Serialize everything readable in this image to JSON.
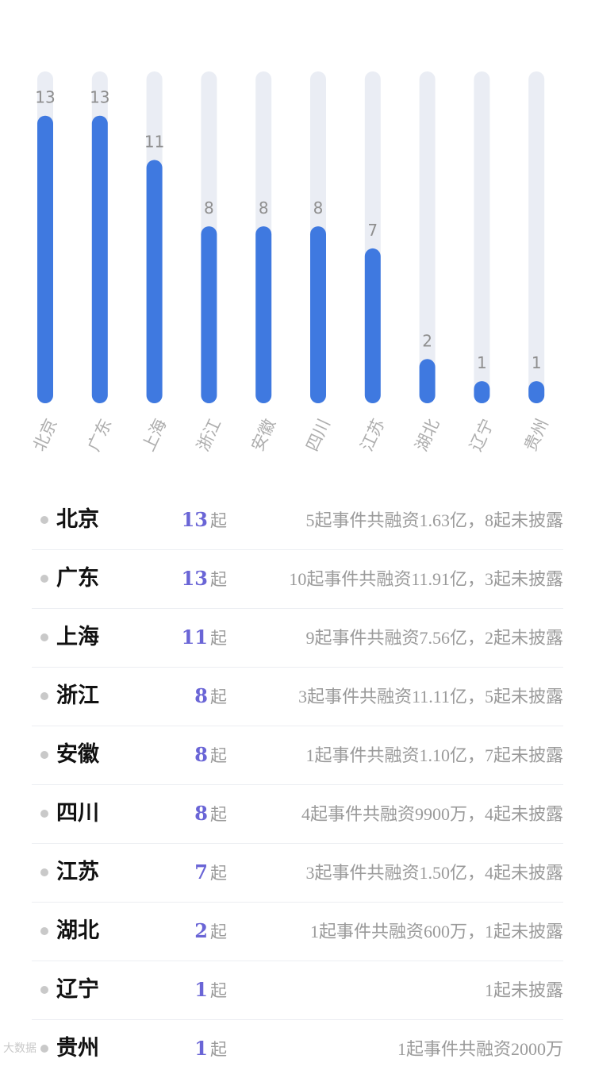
{
  "chart_data": {
    "type": "bar",
    "categories": [
      "北京",
      "广东",
      "上海",
      "浙江",
      "安徽",
      "四川",
      "江苏",
      "湖北",
      "辽宁",
      "贵州"
    ],
    "values": [
      13,
      13,
      11,
      8,
      8,
      8,
      7,
      2,
      1,
      1
    ],
    "ylim": [
      0,
      15
    ],
    "grid": false,
    "bar_color": "#3f79e0",
    "track_color": "#eaedf4",
    "label_color": "#8f8f8f",
    "axis_label_color": "#aeaeae"
  },
  "list": {
    "count_unit": "起",
    "rows": [
      {
        "name": "北京",
        "count": "13",
        "summary": "5起事件共融资1.63亿，8起未披露"
      },
      {
        "name": "广东",
        "count": "13",
        "summary": "10起事件共融资11.91亿，3起未披露"
      },
      {
        "name": "上海",
        "count": "11",
        "summary": "9起事件共融资7.56亿，2起未披露"
      },
      {
        "name": "浙江",
        "count": "8",
        "summary": "3起事件共融资11.11亿，5起未披露"
      },
      {
        "name": "安徽",
        "count": "8",
        "summary": "1起事件共融资1.10亿，7起未披露"
      },
      {
        "name": "四川",
        "count": "8",
        "summary": "4起事件共融资9900万，4起未披露"
      },
      {
        "name": "江苏",
        "count": "7",
        "summary": "3起事件共融资1.50亿，4起未披露"
      },
      {
        "name": "湖北",
        "count": "2",
        "summary": "1起事件共融资600万，1起未披露"
      },
      {
        "name": "辽宁",
        "count": "1",
        "summary": "1起未披露"
      },
      {
        "name": "贵州",
        "count": "1",
        "summary": "1起事件共融资2000万"
      }
    ]
  },
  "watermark": "大数据"
}
